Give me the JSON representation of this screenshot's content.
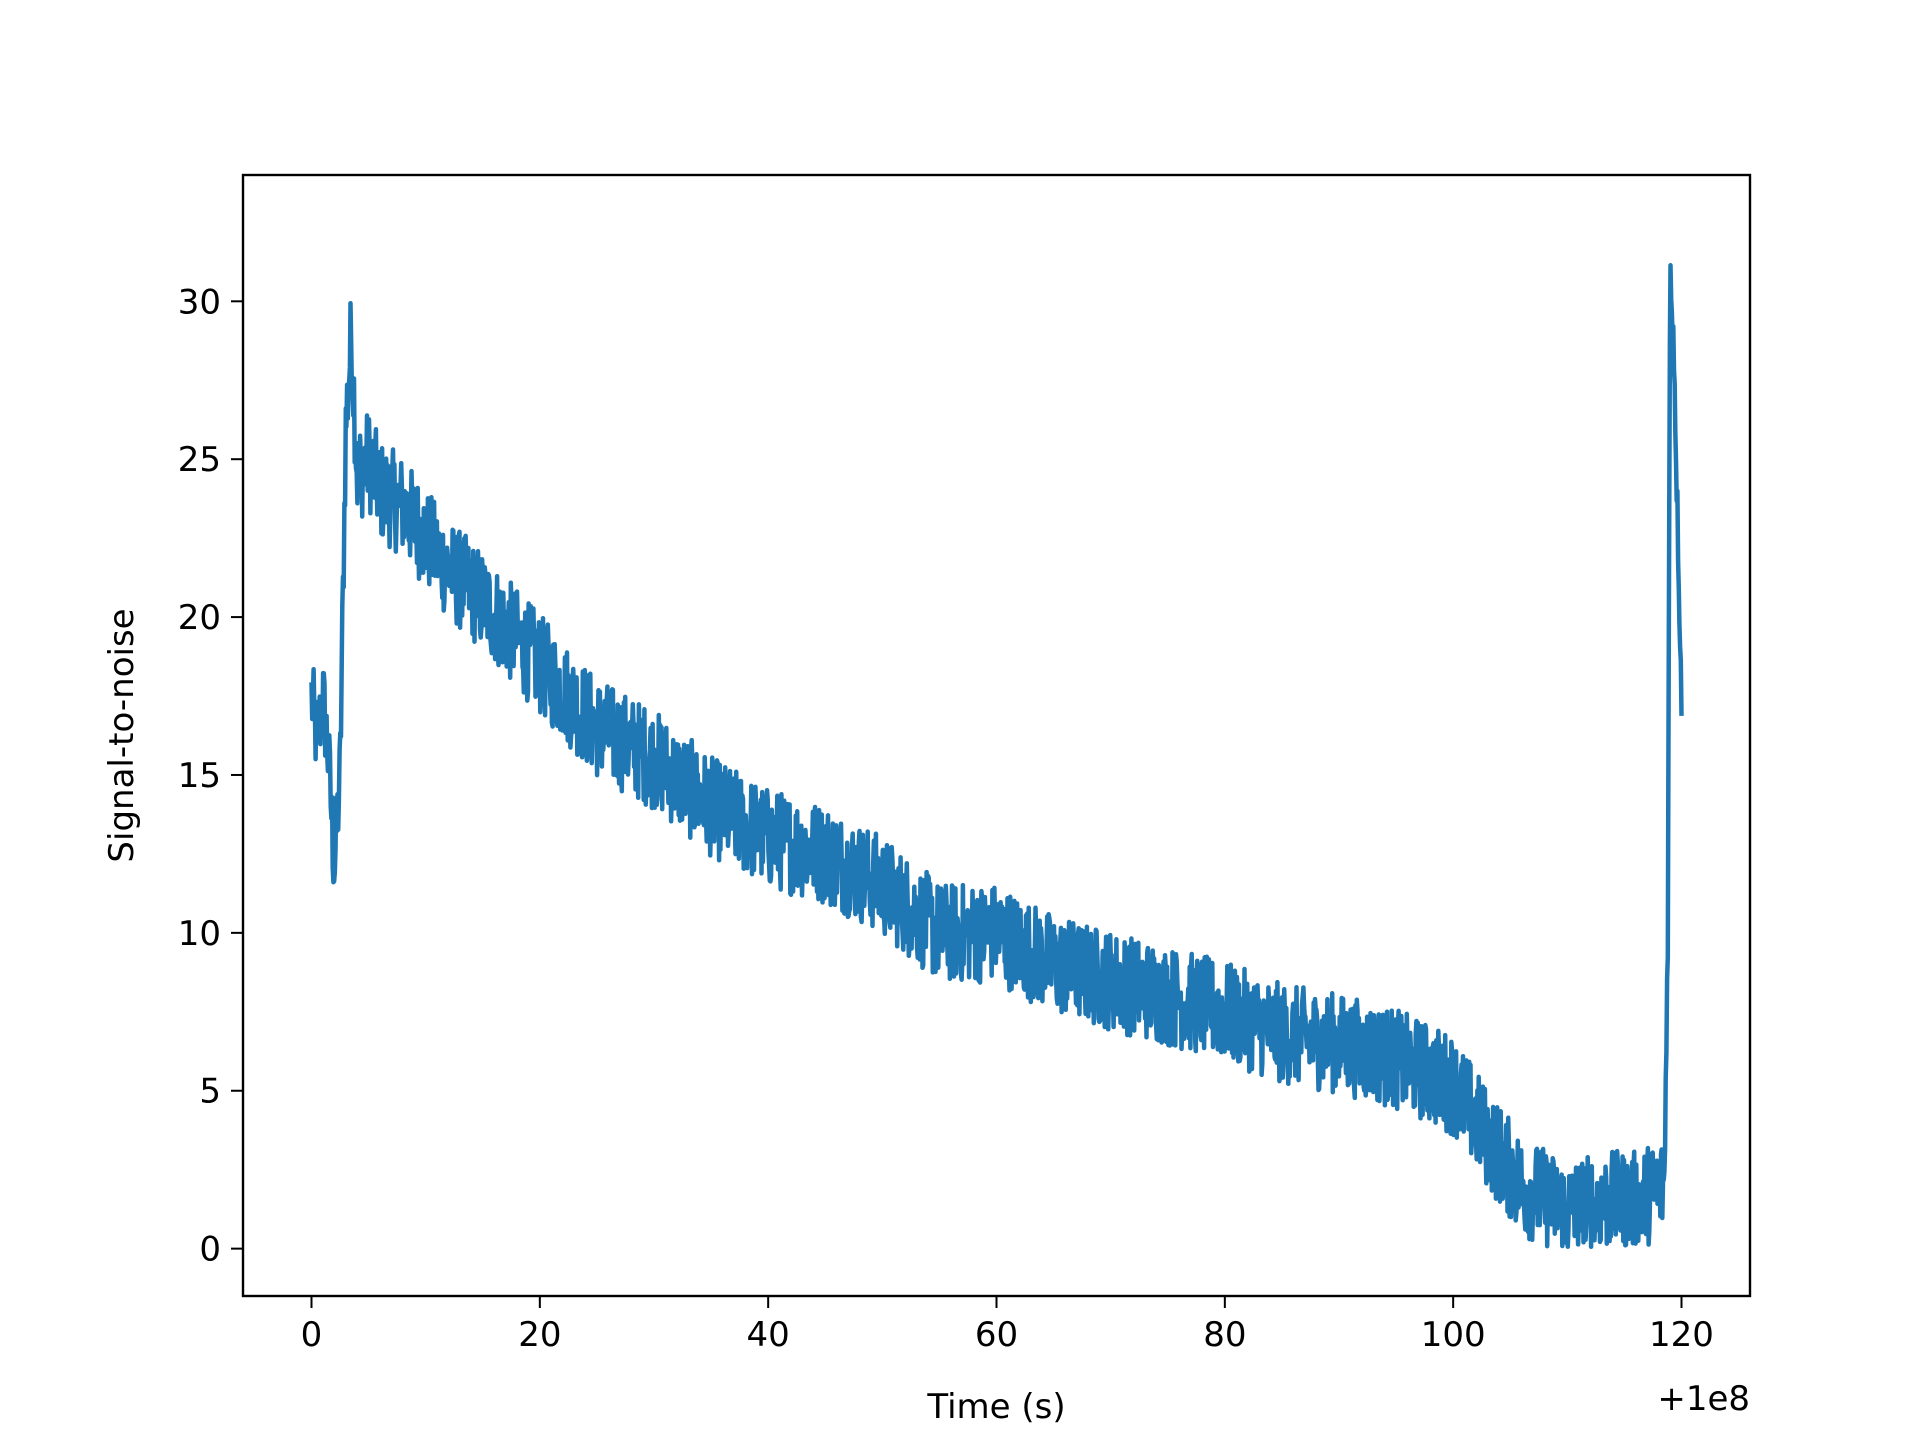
{
  "chart_data": {
    "type": "line",
    "xlabel": "Time (s)",
    "ylabel": "Signal-to-noise",
    "x_offset_label": "+1e8",
    "xlim": [
      -6,
      126
    ],
    "ylim": [
      -1.5,
      34
    ],
    "x_ticks": [
      0,
      20,
      40,
      60,
      80,
      100,
      120
    ],
    "y_ticks": [
      0,
      5,
      10,
      15,
      20,
      25,
      30
    ],
    "grid": false,
    "line_color": "#1f77b4",
    "series": [
      {
        "x": [
          0,
          0.5,
          1,
          1.5,
          2,
          2.5,
          3,
          3.5,
          4,
          5,
          6,
          8,
          10,
          12,
          15,
          20,
          25,
          30,
          35,
          40,
          45,
          50,
          55,
          60,
          65,
          70,
          75,
          80,
          85,
          90,
          95,
          100,
          103,
          106,
          110,
          113,
          116,
          118.5,
          118.8,
          119.0,
          119.3,
          119.6,
          120.0
        ],
        "y": [
          17.5,
          16.0,
          17.5,
          15.5,
          12.0,
          15.0,
          26.0,
          29.0,
          24.5,
          25.0,
          24.0,
          23.5,
          22.5,
          21.5,
          20.5,
          18.5,
          16.5,
          15.5,
          14.0,
          13.0,
          12.5,
          11.5,
          10.0,
          10.0,
          9.0,
          8.5,
          8.0,
          7.5,
          6.8,
          6.5,
          6.0,
          5.2,
          3.5,
          2.0,
          1.2,
          1.5,
          1.5,
          2.0,
          10.0,
          31.0,
          29.0,
          24.0,
          17.5
        ]
      }
    ]
  }
}
